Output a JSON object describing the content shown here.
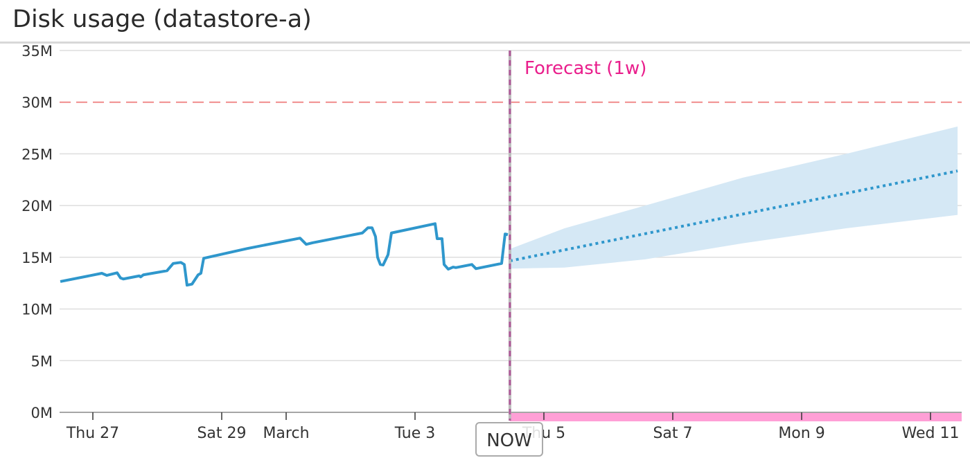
{
  "title": "Disk usage (datastore-a)",
  "chart_data": {
    "type": "line",
    "title": "Disk usage (datastore-a)",
    "xlabel": "",
    "ylabel": "",
    "ylim": [
      0,
      35
    ],
    "y_unit": "M",
    "y_ticks": [
      "0M",
      "5M",
      "10M",
      "15M",
      "20M",
      "25M",
      "30M",
      "35M"
    ],
    "xlim": [
      "2020-02-26T11:30",
      "2020-03-11T11:00"
    ],
    "x_ticks": [
      {
        "label": "Thu 27",
        "t": "2020-02-27T00:00"
      },
      {
        "label": "Sat 29",
        "t": "2020-02-29T00:00"
      },
      {
        "label": "March",
        "t": "2020-03-01T00:00"
      },
      {
        "label": "Tue 3",
        "t": "2020-03-03T00:00"
      },
      {
        "label": "Thu 5",
        "t": "2020-03-05T00:00"
      },
      {
        "label": "Sat 7",
        "t": "2020-03-07T00:00"
      },
      {
        "label": "Mon 9",
        "t": "2020-03-09T00:00"
      },
      {
        "label": "Wed 11",
        "t": "2020-03-11T00:00"
      }
    ],
    "grid": true,
    "threshold": {
      "value": 30,
      "color": "#f08a8a",
      "style": "dashed"
    },
    "now": {
      "label": "NOW",
      "t": "2020-03-04T11:20",
      "color": "#b05a9a"
    },
    "forecast_label": "Forecast (1w)",
    "forecast_color": "#e91e8c",
    "forecast_bar_color": "#ff9fd6",
    "series_color": "#2f97cc",
    "band_color": "#d5e8f5",
    "series": [
      {
        "kind": "actual",
        "points": [
          [
            "2020-02-26T11:53",
            12.65
          ],
          [
            "2020-02-27T03:21",
            13.45
          ],
          [
            "2020-02-27T05:10",
            13.25
          ],
          [
            "2020-02-27T09:02",
            13.5
          ],
          [
            "2020-02-27T10:19",
            13.0
          ],
          [
            "2020-02-27T11:21",
            12.9
          ],
          [
            "2020-02-27T17:17",
            13.2
          ],
          [
            "2020-02-27T17:48",
            13.1
          ],
          [
            "2020-02-27T18:50",
            13.3
          ],
          [
            "2020-02-28T03:37",
            13.7
          ],
          [
            "2020-02-28T05:56",
            14.4
          ],
          [
            "2020-02-28T08:47",
            14.5
          ],
          [
            "2020-02-28T10:04",
            14.3
          ],
          [
            "2020-02-28T11:05",
            12.3
          ],
          [
            "2020-02-28T12:55",
            12.4
          ],
          [
            "2020-02-28T15:13",
            13.3
          ],
          [
            "2020-02-28T16:15",
            13.45
          ],
          [
            "2020-02-28T17:17",
            14.9
          ],
          [
            "2020-02-29T09:33",
            15.85
          ],
          [
            "2020-03-01T05:10",
            16.85
          ],
          [
            "2020-03-01T07:29",
            16.25
          ],
          [
            "2020-03-01T09:49",
            16.4
          ],
          [
            "2020-03-02T04:23",
            17.35
          ],
          [
            "2020-03-02T06:27",
            17.85
          ],
          [
            "2020-03-02T08:00",
            17.85
          ],
          [
            "2020-03-02T09:17",
            17.0
          ],
          [
            "2020-03-02T10:03",
            15.0
          ],
          [
            "2020-03-02T11:05",
            14.3
          ],
          [
            "2020-03-02T12:07",
            14.25
          ],
          [
            "2020-03-02T13:57",
            15.25
          ],
          [
            "2020-03-02T15:13",
            17.35
          ],
          [
            "2020-03-03T07:29",
            18.25
          ],
          [
            "2020-03-03T08:15",
            16.8
          ],
          [
            "2020-03-03T10:03",
            16.8
          ],
          [
            "2020-03-03T10:50",
            14.3
          ],
          [
            "2020-03-03T12:23",
            13.85
          ],
          [
            "2020-03-03T14:11",
            14.05
          ],
          [
            "2020-03-03T15:13",
            14.0
          ],
          [
            "2020-03-03T21:10",
            14.3
          ],
          [
            "2020-03-03T22:42",
            13.9
          ],
          [
            "2020-03-04T08:15",
            14.4
          ],
          [
            "2020-03-04T09:33",
            17.25
          ],
          [
            "2020-03-04T10:35",
            17.2
          ]
        ]
      },
      {
        "kind": "forecast",
        "points": [
          [
            "2020-03-04T11:20",
            14.65
          ],
          [
            "2020-03-11T10:05",
            23.35
          ]
        ]
      },
      {
        "kind": "forecast_band",
        "points": [
          [
            "2020-03-04T11:20",
            13.9,
            15.8
          ],
          [
            "2020-03-05T07:41",
            14.0,
            17.8
          ],
          [
            "2020-03-06T13:42",
            14.8,
            20.0
          ],
          [
            "2020-03-08T02:09",
            16.35,
            22.7
          ],
          [
            "2020-03-09T16:33",
            17.8,
            25.0
          ],
          [
            "2020-03-11T10:05",
            19.1,
            27.65
          ]
        ]
      }
    ]
  }
}
